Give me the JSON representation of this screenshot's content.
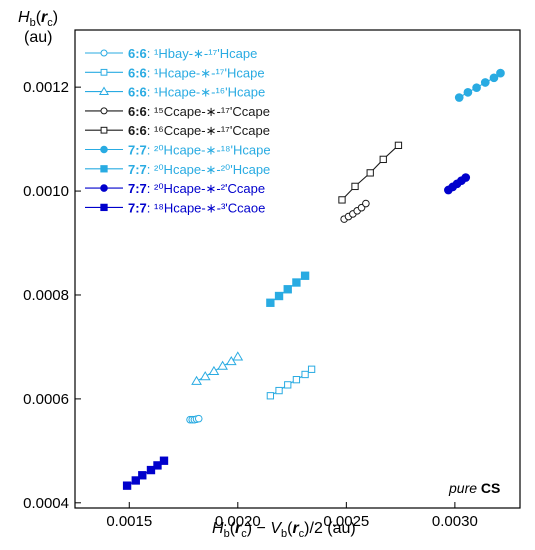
{
  "chart_data": {
    "type": "scatter",
    "xlabel": "H_b(r_c) − V_b(r_c)/2 (au)",
    "ylabel": "H_b(r_c) (au)",
    "xlim": [
      0.00125,
      0.0033
    ],
    "ylim": [
      0.00039,
      0.00131
    ],
    "x_ticks": [
      "0.0015",
      "0.0020",
      "0.0025",
      "0.0030"
    ],
    "x_tick_values": [
      0.0015,
      0.002,
      0.0025,
      0.003
    ],
    "y_ticks": [
      "0.0004",
      "0.0006",
      "0.0008",
      "0.0010",
      "0.0012"
    ],
    "y_tick_values": [
      0.0004,
      0.0006,
      0.0008,
      0.001,
      0.0012
    ],
    "annotation": {
      "italic": "pure",
      "bold": "CS"
    },
    "series": [
      {
        "name": "6:6: 1Hbay-*-17'Hcape",
        "legend_bold": "6:6",
        "legend_rest": ": ¹Hbay-∗-¹⁷'Hcape",
        "color": "#29ABE2",
        "marker": "circle",
        "filled": false,
        "x": [
          0.00178,
          0.00179,
          0.0018,
          0.00181,
          0.00182
        ],
        "y": [
          0.00056,
          0.00056,
          0.00056,
          0.000561,
          0.000562
        ]
      },
      {
        "name": "6:6: 1Hcape-*-17'Hcape",
        "legend_bold": "6:6",
        "legend_rest": ": ¹Hcape-∗-¹⁷'Hcape",
        "color": "#29ABE2",
        "marker": "square",
        "filled": false,
        "x": [
          0.00215,
          0.00219,
          0.00223,
          0.00227,
          0.00231,
          0.00234
        ],
        "y": [
          0.000606,
          0.000616,
          0.000627,
          0.000637,
          0.000647,
          0.000657
        ]
      },
      {
        "name": "6:6: 1Hcape-*-16'Hcape",
        "legend_bold": "6:6",
        "legend_rest": ": ¹Hcape-∗-¹⁶'Hcape",
        "color": "#29ABE2",
        "marker": "triangle",
        "filled": false,
        "x": [
          0.00181,
          0.00185,
          0.00189,
          0.00193,
          0.00197,
          0.002
        ],
        "y": [
          0.000634,
          0.000643,
          0.000653,
          0.000663,
          0.000672,
          0.000681
        ]
      },
      {
        "name": "6:6: 15Ccape-*-17'Ccape",
        "legend_bold": "6:6",
        "legend_rest": ": ¹⁵Ccape-∗-¹⁷'Ccape",
        "color": "#1a1a1a",
        "marker": "circle",
        "filled": false,
        "x": [
          0.00249,
          0.00251,
          0.00253,
          0.00255,
          0.00257,
          0.00259
        ],
        "y": [
          0.000946,
          0.000951,
          0.000956,
          0.000962,
          0.000968,
          0.000976
        ]
      },
      {
        "name": "6:6: 16Ccape-*-17'Ccape",
        "legend_bold": "6:6",
        "legend_rest": ": ¹⁶Ccape-∗-¹⁷'Ccape",
        "color": "#1a1a1a",
        "marker": "square",
        "filled": false,
        "x": [
          0.00248,
          0.00254,
          0.00261,
          0.00267,
          0.00274
        ],
        "y": [
          0.000983,
          0.001009,
          0.001035,
          0.001061,
          0.001088
        ]
      },
      {
        "name": "7:7: 20Hcape-*-18'Hcape",
        "legend_bold": "7:7",
        "legend_rest": ": ²⁰Hcape-∗-¹⁸'Hcape",
        "color": "#29ABE2",
        "marker": "circle",
        "filled": true,
        "x": [
          0.00302,
          0.00306,
          0.0031,
          0.00314,
          0.00318,
          0.00321
        ],
        "y": [
          0.00118,
          0.00119,
          0.001199,
          0.001209,
          0.001218,
          0.001227
        ]
      },
      {
        "name": "7:7: 20Hcape-*-20'Hcape",
        "legend_bold": "7:7",
        "legend_rest": ": ²⁰Hcape-∗-²⁰'Hcape",
        "color": "#29ABE2",
        "marker": "square",
        "filled": true,
        "x": [
          0.00215,
          0.00219,
          0.00223,
          0.00227,
          0.00231
        ],
        "y": [
          0.000785,
          0.000798,
          0.000811,
          0.000824,
          0.000837
        ]
      },
      {
        "name": "7:7: 20Hcape-*-2'Ccape",
        "legend_bold": "7:7",
        "legend_rest": ": ²⁰Hcape-∗-²'Ccape",
        "color": "#0000CC",
        "marker": "circle",
        "filled": true,
        "x": [
          0.00297,
          0.00299,
          0.00301,
          0.00303,
          0.00305
        ],
        "y": [
          0.001002,
          0.001008,
          0.001014,
          0.00102,
          0.001026
        ]
      },
      {
        "name": "7:7: 18Hcape-*-3'Ccaoe",
        "legend_bold": "7:7",
        "legend_rest": ": ¹⁸Hcape-∗-³'Ccaoe",
        "color": "#0000CC",
        "marker": "square",
        "filled": true,
        "x": [
          0.00149,
          0.00153,
          0.00156,
          0.0016,
          0.00163,
          0.00166
        ],
        "y": [
          0.000433,
          0.000443,
          0.000453,
          0.000463,
          0.000472,
          0.000481
        ]
      }
    ]
  }
}
